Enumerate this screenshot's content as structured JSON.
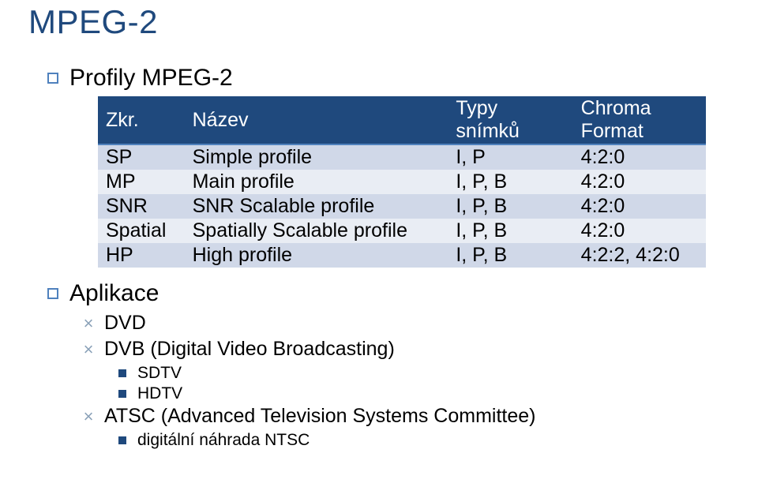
{
  "colors": {
    "title": "#1f497d",
    "section_bullet_border": "#4f81bd",
    "section_text": "#000000",
    "table_header_bg": "#1f497d",
    "table_header_border_bottom": "#4f81bd",
    "row_alt1_bg": "#d0d8e8",
    "row_alt2_bg": "#e9edf4",
    "x_bullet": "#8aa1b8",
    "dot_bullet": "#1f497d"
  },
  "title": "MPEG-2",
  "section1_label": "Profily MPEG-2",
  "table": {
    "columns": [
      "Zkr.",
      "Název",
      "Typy snímků",
      "Chroma Format"
    ],
    "rows": [
      [
        "SP",
        "Simple profile",
        "I, P",
        "4:2:0"
      ],
      [
        "MP",
        "Main profile",
        "I, P, B",
        "4:2:0"
      ],
      [
        "SNR",
        "SNR Scalable profile",
        "I, P, B",
        "4:2:0"
      ],
      [
        "Spatial",
        "Spatially Scalable profile",
        "I, P, B",
        "4:2:0"
      ],
      [
        "HP",
        "High profile",
        "I, P, B",
        "4:2:2, 4:2:0"
      ]
    ]
  },
  "section2_label": "Aplikace",
  "apps": {
    "item1": "DVD",
    "item2": "DVB (Digital Video Broadcasting)",
    "item2_sub1": "SDTV",
    "item2_sub2": "HDTV",
    "item3": "ATSC (Advanced Television Systems Committee)",
    "item3_sub1": "digitální náhrada NTSC"
  }
}
